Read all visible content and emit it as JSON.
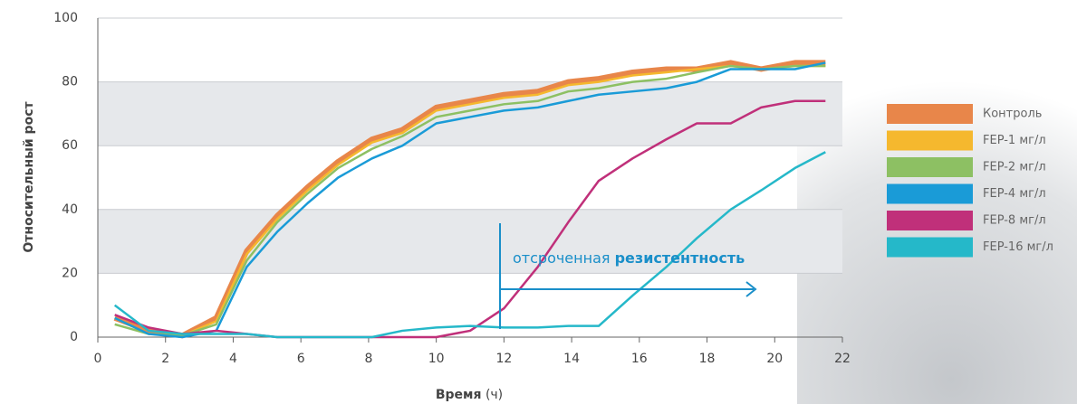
{
  "chart_data": {
    "type": "line",
    "ylabel": "Относительный рост",
    "xlabel": "Время",
    "xlabel_unit": "(ч)",
    "annotation": [
      "отсроченная",
      "резистентность"
    ],
    "x": [
      0.5,
      1.5,
      2.5,
      3.5,
      4.4,
      5.3,
      6.2,
      7.1,
      8.1,
      9.0,
      10.0,
      11.0,
      12.0,
      13.0,
      13.9,
      14.8,
      15.8,
      16.8,
      17.7,
      18.7,
      19.6,
      20.6,
      21.5
    ],
    "series": [
      {
        "name": "Контроль",
        "color": "#e8864a",
        "values": [
          6,
          2,
          0.5,
          6,
          27,
          38,
          47,
          55,
          62,
          65,
          72,
          74,
          76,
          77,
          80,
          81,
          83,
          84,
          84,
          86,
          84,
          86,
          86
        ]
      },
      {
        "name": "FEP-1 мг/л",
        "color": "#f5b82e",
        "values": [
          6,
          1,
          0.5,
          5,
          26,
          37,
          46,
          54,
          61,
          64,
          71,
          73,
          75,
          76,
          79,
          80,
          82,
          83,
          84,
          85,
          84,
          85,
          85
        ]
      },
      {
        "name": "FEP-2 мг/л",
        "color": "#8dc063",
        "values": [
          4,
          1,
          0.5,
          4,
          24,
          36,
          45,
          53,
          59,
          63,
          69,
          71,
          73,
          74,
          77,
          78,
          80,
          81,
          83,
          85,
          84,
          85,
          85
        ]
      },
      {
        "name": "FEP-4 мг/л",
        "color": "#1a9bd7",
        "values": [
          6,
          1,
          0,
          2,
          22,
          33,
          42,
          50,
          56,
          60,
          67,
          69,
          71,
          72,
          74,
          76,
          77,
          78,
          80,
          84,
          84,
          84,
          86
        ]
      },
      {
        "name": "FEP-8 мг/л",
        "color": "#c0307a",
        "values": [
          7,
          3,
          1,
          2,
          1,
          0,
          0,
          0,
          0,
          0,
          0,
          2,
          9,
          22,
          36,
          49,
          56,
          62,
          67,
          67,
          72,
          74,
          74
        ]
      },
      {
        "name": "FEP-16 мг/л",
        "color": "#25b8c9",
        "values": [
          10,
          2,
          1,
          1,
          1,
          0,
          0,
          0,
          0,
          2,
          3,
          3.5,
          3,
          3,
          3.5,
          3.5,
          13,
          22,
          31,
          40,
          46,
          53,
          58
        ]
      }
    ],
    "xlim": [
      0,
      22
    ],
    "xticks": [
      0,
      2,
      4,
      6,
      8,
      10,
      12,
      14,
      16,
      18,
      20,
      22
    ],
    "ylim": [
      0,
      100
    ],
    "yticks": [
      0,
      20,
      40,
      60,
      80,
      100
    ],
    "grid": true
  }
}
